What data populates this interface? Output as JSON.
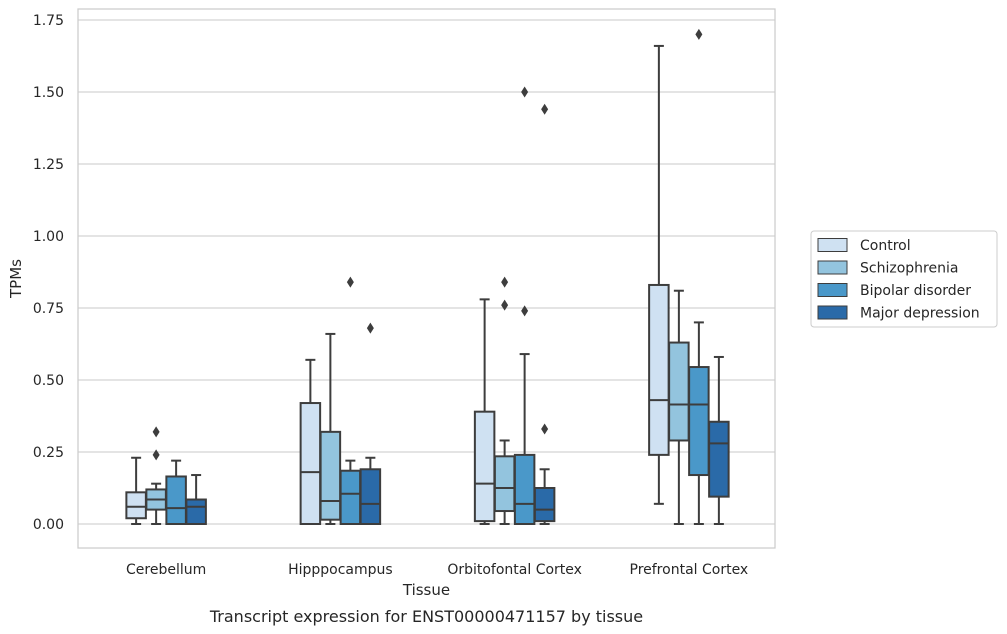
{
  "chart_data": {
    "type": "box",
    "caption": "Transcript expression for ENST00000471157 by tissue",
    "xlabel": "Tissue",
    "ylabel": "TPMs",
    "ylim": [
      -0.085,
      1.79
    ],
    "yticks": [
      "0.00",
      "0.25",
      "0.50",
      "0.75",
      "1.00",
      "1.25",
      "1.50",
      "1.75"
    ],
    "grid": "horizontal",
    "legend_position": "right",
    "categories": [
      "Cerebellum",
      "Hipppocampus",
      "Orbitofontal Cortex",
      "Prefrontal Cortex"
    ],
    "series": [
      {
        "name": "Control",
        "color": "#cfe1f2",
        "boxes": [
          {
            "whislo": 0.0,
            "q1": 0.02,
            "med": 0.06,
            "q3": 0.11,
            "whishi": 0.23,
            "fliers": []
          },
          {
            "whislo": 0.0,
            "q1": 0.0,
            "med": 0.18,
            "q3": 0.42,
            "whishi": 0.57,
            "fliers": []
          },
          {
            "whislo": 0.0,
            "q1": 0.01,
            "med": 0.14,
            "q3": 0.39,
            "whishi": 0.78,
            "fliers": []
          },
          {
            "whislo": 0.07,
            "q1": 0.24,
            "med": 0.43,
            "q3": 0.83,
            "whishi": 1.66,
            "fliers": []
          }
        ]
      },
      {
        "name": "Schizophrenia",
        "color": "#93c4de",
        "boxes": [
          {
            "whislo": 0.0,
            "q1": 0.05,
            "med": 0.085,
            "q3": 0.12,
            "whishi": 0.14,
            "fliers": [
              0.24,
              0.32
            ]
          },
          {
            "whislo": 0.0,
            "q1": 0.015,
            "med": 0.08,
            "q3": 0.32,
            "whishi": 0.66,
            "fliers": []
          },
          {
            "whislo": 0.0,
            "q1": 0.045,
            "med": 0.125,
            "q3": 0.235,
            "whishi": 0.29,
            "fliers": [
              0.76,
              0.84
            ]
          },
          {
            "whislo": 0.0,
            "q1": 0.29,
            "med": 0.415,
            "q3": 0.63,
            "whishi": 0.81,
            "fliers": []
          }
        ]
      },
      {
        "name": "Bipolar disorder",
        "color": "#4a98c9",
        "boxes": [
          {
            "whislo": 0.0,
            "q1": 0.0,
            "med": 0.055,
            "q3": 0.165,
            "whishi": 0.22,
            "fliers": []
          },
          {
            "whislo": 0.0,
            "q1": 0.0,
            "med": 0.105,
            "q3": 0.185,
            "whishi": 0.22,
            "fliers": [
              0.84
            ]
          },
          {
            "whislo": 0.0,
            "q1": 0.0,
            "med": 0.07,
            "q3": 0.24,
            "whishi": 0.59,
            "fliers": [
              0.74,
              1.5
            ]
          },
          {
            "whislo": 0.0,
            "q1": 0.17,
            "med": 0.415,
            "q3": 0.545,
            "whishi": 0.7,
            "fliers": [
              1.7
            ]
          }
        ]
      },
      {
        "name": "Major depression",
        "color": "#2a6aa8",
        "boxes": [
          {
            "whislo": 0.0,
            "q1": 0.0,
            "med": 0.06,
            "q3": 0.085,
            "whishi": 0.17,
            "fliers": []
          },
          {
            "whislo": 0.0,
            "q1": 0.0,
            "med": 0.07,
            "q3": 0.19,
            "whishi": 0.23,
            "fliers": [
              0.68
            ]
          },
          {
            "whislo": 0.0,
            "q1": 0.01,
            "med": 0.05,
            "q3": 0.125,
            "whishi": 0.19,
            "fliers": [
              0.33,
              1.44
            ]
          },
          {
            "whislo": 0.0,
            "q1": 0.095,
            "med": 0.28,
            "q3": 0.355,
            "whishi": 0.58,
            "fliers": []
          }
        ]
      }
    ]
  }
}
